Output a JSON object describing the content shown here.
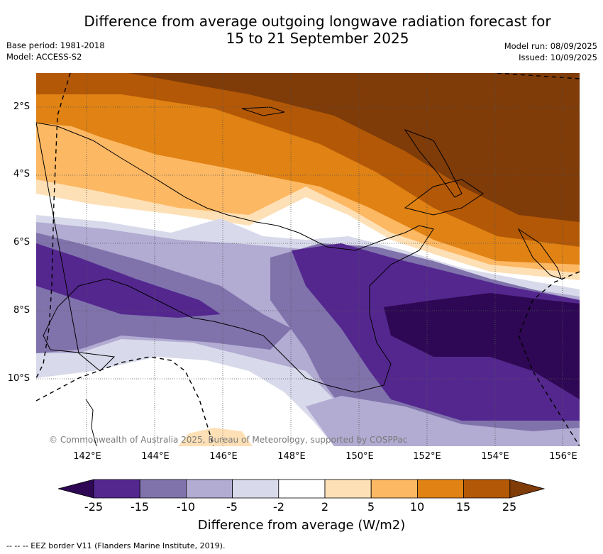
{
  "title": {
    "line1": "Difference from average outgoing longwave radiation forecast for",
    "line2": "15 to 21 September 2025"
  },
  "meta_left": {
    "base_period": "Base period: 1981-2018",
    "model": "Model: ACCESS-S2"
  },
  "meta_right": {
    "model_run": "Model run: 08/09/2025",
    "issued": "Issued: 10/09/2025"
  },
  "map": {
    "lat_labels": [
      "2°S",
      "4°S",
      "6°S",
      "8°S",
      "10°S"
    ],
    "lon_labels": [
      "142°E",
      "144°E",
      "146°E",
      "148°E",
      "150°E",
      "152°E",
      "154°E",
      "156°E"
    ],
    "copyright": "© Commonwealth of Australia 2025, Bureau of Meteorology, supported by COSPPac"
  },
  "colorbar": {
    "ticks": [
      "-25",
      "-15",
      "-10",
      "-5",
      "-2",
      "2",
      "5",
      "10",
      "15",
      "25"
    ],
    "colors": [
      "#2e0854",
      "#54278f",
      "#8073ac",
      "#b2abd2",
      "#d8daeb",
      "#ffffff",
      "#fee0b6",
      "#fdb863",
      "#e08214",
      "#b35806",
      "#7f3b08"
    ],
    "label": "Difference from average (W/m2)"
  },
  "footer": {
    "eez_note": "--  --  -- EEZ border V11 (Flanders Marine Institute, 2019)."
  }
}
